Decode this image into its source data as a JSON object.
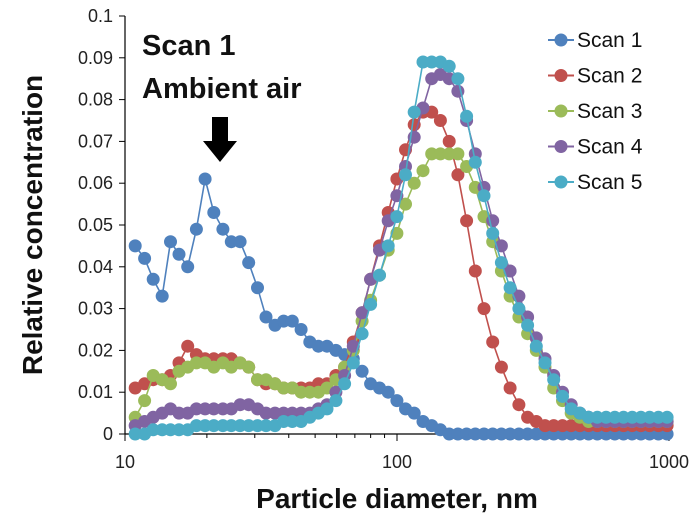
{
  "chart_data": {
    "type": "line",
    "title": "",
    "xlabel": "Particle diameter, nm",
    "ylabel": "Relative concentration",
    "xscale": "log",
    "xlim": [
      10,
      1000
    ],
    "ylim": [
      0,
      0.1
    ],
    "xticks": [
      "10",
      "100",
      "1000"
    ],
    "yticks": [
      "0",
      "0.01",
      "0.02",
      "0.03",
      "0.04",
      "0.05",
      "0.06",
      "0.07",
      "0.08",
      "0.09",
      "0.1"
    ],
    "grid": false,
    "legend_position": "top-right",
    "annotation": {
      "lines": [
        "Scan 1",
        "Ambient air"
      ],
      "points_to": {
        "x": 22,
        "y": 0.061
      }
    },
    "series": [
      {
        "name": "Scan 1",
        "color": "#4f81bd",
        "x": [
          10.9,
          11.8,
          12.7,
          13.7,
          14.7,
          15.8,
          17.0,
          18.3,
          19.7,
          21.2,
          22.9,
          24.6,
          26.5,
          28.5,
          30.7,
          33.0,
          35.6,
          38.3,
          41.2,
          44.4,
          47.8,
          51.4,
          55.3,
          59.6,
          64.2,
          69.1,
          74.4,
          80.0,
          86.2,
          92.8,
          99.9,
          107.5,
          115.7,
          124.6,
          134.1,
          144.4,
          155.5,
          167.4,
          180.2,
          194.0,
          208.9,
          224.9,
          242.1,
          260.6,
          280.6,
          302.1,
          325.2,
          350.1,
          376.9,
          405.8,
          436.9,
          470.4,
          506.4,
          545.2,
          587.0,
          631.9,
          680.3,
          732.4,
          788.5,
          848.9,
          913.9,
          984.0
        ],
        "values": [
          0.045,
          0.042,
          0.037,
          0.033,
          0.046,
          0.043,
          0.04,
          0.049,
          0.061,
          0.053,
          0.049,
          0.046,
          0.046,
          0.041,
          0.035,
          0.028,
          0.026,
          0.027,
          0.027,
          0.025,
          0.022,
          0.021,
          0.021,
          0.02,
          0.019,
          0.018,
          0.015,
          0.012,
          0.011,
          0.01,
          0.008,
          0.006,
          0.005,
          0.003,
          0.002,
          0.001,
          0.0,
          0.0,
          0.0,
          0.0,
          0.0,
          0.0,
          0.0,
          0.0,
          0.0,
          0.0,
          0.0,
          0.0,
          0.0,
          0.0,
          0.0,
          0.0,
          0.0,
          0.0,
          0.0,
          0.0,
          0.0,
          0.0,
          0.0,
          0.0,
          0.0,
          0.0
        ]
      },
      {
        "name": "Scan 2",
        "color": "#c0504d",
        "x": [
          10.9,
          11.8,
          12.7,
          13.7,
          14.7,
          15.8,
          17.0,
          18.3,
          19.7,
          21.2,
          22.9,
          24.6,
          26.5,
          28.5,
          30.7,
          33.0,
          35.6,
          38.3,
          41.2,
          44.4,
          47.8,
          51.4,
          55.3,
          59.6,
          64.2,
          69.1,
          74.4,
          80.0,
          86.2,
          92.8,
          99.9,
          107.5,
          115.7,
          124.6,
          134.1,
          144.4,
          155.5,
          167.4,
          180.2,
          194.0,
          208.9,
          224.9,
          242.1,
          260.6,
          280.6,
          302.1,
          325.2,
          350.1,
          376.9,
          405.8,
          436.9,
          470.4,
          506.4,
          545.2,
          587.0,
          631.9,
          680.3,
          732.4,
          788.5,
          848.9,
          913.9,
          984.0
        ],
        "values": [
          0.011,
          0.012,
          0.013,
          0.013,
          0.014,
          0.017,
          0.021,
          0.019,
          0.018,
          0.018,
          0.018,
          0.018,
          0.017,
          0.016,
          0.013,
          0.012,
          0.012,
          0.011,
          0.011,
          0.011,
          0.011,
          0.012,
          0.012,
          0.014,
          0.016,
          0.022,
          0.029,
          0.037,
          0.045,
          0.053,
          0.061,
          0.068,
          0.074,
          0.077,
          0.077,
          0.075,
          0.07,
          0.062,
          0.051,
          0.039,
          0.03,
          0.022,
          0.016,
          0.011,
          0.007,
          0.004,
          0.003,
          0.002,
          0.002,
          0.002,
          0.002,
          0.002,
          0.002,
          0.002,
          0.002,
          0.002,
          0.002,
          0.002,
          0.002,
          0.002,
          0.002,
          0.002
        ]
      },
      {
        "name": "Scan 3",
        "color": "#9bbb59",
        "x": [
          10.9,
          11.8,
          12.7,
          13.7,
          14.7,
          15.8,
          17.0,
          18.3,
          19.7,
          21.2,
          22.9,
          24.6,
          26.5,
          28.5,
          30.7,
          33.0,
          35.6,
          38.3,
          41.2,
          44.4,
          47.8,
          51.4,
          55.3,
          59.6,
          64.2,
          69.1,
          74.4,
          80.0,
          86.2,
          92.8,
          99.9,
          107.5,
          115.7,
          124.6,
          134.1,
          144.4,
          155.5,
          167.4,
          180.2,
          194.0,
          208.9,
          224.9,
          242.1,
          260.6,
          280.6,
          302.1,
          325.2,
          350.1,
          376.9,
          405.8,
          436.9,
          470.4,
          506.4,
          545.2,
          587.0,
          631.9,
          680.3,
          732.4,
          788.5,
          848.9,
          913.9,
          984.0
        ],
        "values": [
          0.004,
          0.008,
          0.014,
          0.013,
          0.012,
          0.015,
          0.016,
          0.017,
          0.017,
          0.016,
          0.017,
          0.016,
          0.017,
          0.016,
          0.013,
          0.013,
          0.012,
          0.011,
          0.011,
          0.01,
          0.01,
          0.01,
          0.011,
          0.013,
          0.016,
          0.02,
          0.027,
          0.032,
          0.038,
          0.044,
          0.048,
          0.055,
          0.06,
          0.063,
          0.067,
          0.067,
          0.067,
          0.067,
          0.064,
          0.059,
          0.052,
          0.046,
          0.039,
          0.033,
          0.028,
          0.024,
          0.02,
          0.016,
          0.011,
          0.008,
          0.005,
          0.004,
          0.003,
          0.003,
          0.003,
          0.003,
          0.003,
          0.003,
          0.003,
          0.003,
          0.003,
          0.003
        ]
      },
      {
        "name": "Scan 4",
        "color": "#8064a2",
        "x": [
          10.9,
          11.8,
          12.7,
          13.7,
          14.7,
          15.8,
          17.0,
          18.3,
          19.7,
          21.2,
          22.9,
          24.6,
          26.5,
          28.5,
          30.7,
          33.0,
          35.6,
          38.3,
          41.2,
          44.4,
          47.8,
          51.4,
          55.3,
          59.6,
          64.2,
          69.1,
          74.4,
          80.0,
          86.2,
          92.8,
          99.9,
          107.5,
          115.7,
          124.6,
          134.1,
          144.4,
          155.5,
          167.4,
          180.2,
          194.0,
          208.9,
          224.9,
          242.1,
          260.6,
          280.6,
          302.1,
          325.2,
          350.1,
          376.9,
          405.8,
          436.9,
          470.4,
          506.4,
          545.2,
          587.0,
          631.9,
          680.3,
          732.4,
          788.5,
          848.9,
          913.9,
          984.0
        ],
        "values": [
          0.002,
          0.003,
          0.004,
          0.005,
          0.006,
          0.005,
          0.005,
          0.006,
          0.006,
          0.006,
          0.006,
          0.006,
          0.007,
          0.007,
          0.006,
          0.005,
          0.005,
          0.005,
          0.005,
          0.005,
          0.005,
          0.006,
          0.007,
          0.01,
          0.014,
          0.021,
          0.029,
          0.037,
          0.044,
          0.051,
          0.057,
          0.064,
          0.071,
          0.078,
          0.085,
          0.086,
          0.085,
          0.082,
          0.075,
          0.067,
          0.059,
          0.051,
          0.045,
          0.039,
          0.033,
          0.028,
          0.023,
          0.018,
          0.014,
          0.01,
          0.007,
          0.005,
          0.004,
          0.003,
          0.003,
          0.003,
          0.003,
          0.003,
          0.003,
          0.003,
          0.003,
          0.003
        ]
      },
      {
        "name": "Scan 5",
        "color": "#4bacc6",
        "x": [
          10.9,
          11.8,
          12.7,
          13.7,
          14.7,
          15.8,
          17.0,
          18.3,
          19.7,
          21.2,
          22.9,
          24.6,
          26.5,
          28.5,
          30.7,
          33.0,
          35.6,
          38.3,
          41.2,
          44.4,
          47.8,
          51.4,
          55.3,
          59.6,
          64.2,
          69.1,
          74.4,
          80.0,
          86.2,
          92.8,
          99.9,
          107.5,
          115.7,
          124.6,
          134.1,
          144.4,
          155.5,
          167.4,
          180.2,
          194.0,
          208.9,
          224.9,
          242.1,
          260.6,
          280.6,
          302.1,
          325.2,
          350.1,
          376.9,
          405.8,
          436.9,
          470.4,
          506.4,
          545.2,
          587.0,
          631.9,
          680.3,
          732.4,
          788.5,
          848.9,
          913.9,
          984.0
        ],
        "values": [
          0.0,
          0.0,
          0.001,
          0.001,
          0.001,
          0.001,
          0.001,
          0.002,
          0.002,
          0.002,
          0.002,
          0.002,
          0.002,
          0.002,
          0.002,
          0.002,
          0.002,
          0.003,
          0.003,
          0.003,
          0.004,
          0.005,
          0.006,
          0.008,
          0.012,
          0.017,
          0.024,
          0.031,
          0.038,
          0.045,
          0.052,
          0.062,
          0.077,
          0.089,
          0.089,
          0.089,
          0.088,
          0.085,
          0.076,
          0.065,
          0.057,
          0.048,
          0.041,
          0.035,
          0.03,
          0.026,
          0.021,
          0.017,
          0.013,
          0.009,
          0.006,
          0.005,
          0.004,
          0.004,
          0.004,
          0.004,
          0.004,
          0.004,
          0.004,
          0.004,
          0.004,
          0.004
        ]
      }
    ]
  }
}
